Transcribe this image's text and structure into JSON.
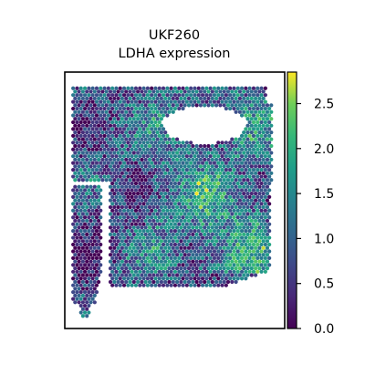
{
  "chart_data": {
    "type": "scatter",
    "subtype": "spatial-hex-spot-map",
    "title_lines": [
      "UKF260",
      "LDHA expression"
    ],
    "xlabel": "",
    "ylabel": "",
    "colorbar": {
      "colormap": "viridis",
      "range": [
        0.0,
        2.85
      ],
      "ticks": [
        0.0,
        0.5,
        1.0,
        1.5,
        2.0,
        2.5
      ],
      "tick_labels": [
        "0.0",
        "0.5",
        "1.0",
        "1.5",
        "2.0",
        "2.5"
      ]
    },
    "axes_ticks_visible": false,
    "grid": false,
    "legend": "none"
  }
}
